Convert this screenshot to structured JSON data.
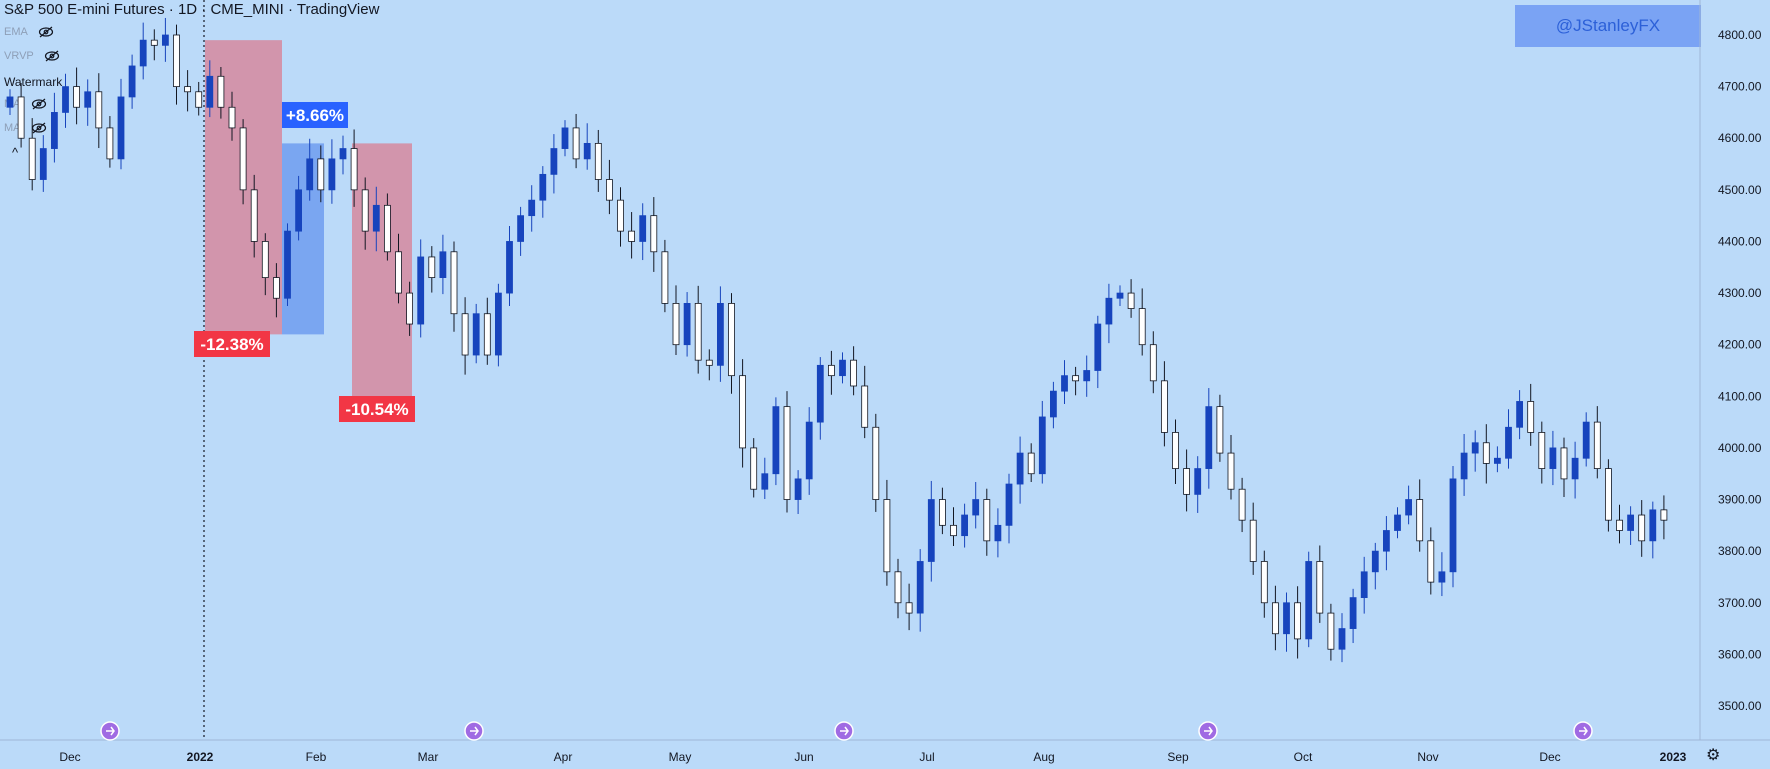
{
  "header": {
    "title": "S&P 500 E-mini Futures · 1D · CME_MINI · TradingView"
  },
  "indicators": [
    {
      "label": "EMA",
      "icon": "eye-hidden-icon"
    },
    {
      "label": "VRVP",
      "icon": "eye-hidden-icon"
    },
    {
      "label": "MA",
      "icon": "eye-hidden-icon"
    },
    {
      "label": "MA",
      "icon": "eye-hidden-icon"
    }
  ],
  "watermark_label": "Watermark",
  "collapse_icon": "^",
  "handle": "@JStanleyFX",
  "colors": {
    "background": "#bbdaf9",
    "up": "#1744bd",
    "down": "#ffffff",
    "range_down": "#d6889f",
    "range_up": "#6f9cf0"
  },
  "chart_data": {
    "type": "candlestick",
    "title": "S&P 500 E-mini Futures · 1D · CME_MINI · TradingView",
    "ylim": [
      3450,
      4850
    ],
    "y_ticks": [
      "4800.00",
      "4700.00",
      "4600.00",
      "4500.00",
      "4400.00",
      "4300.00",
      "4200.00",
      "4100.00",
      "4000.00",
      "3900.00",
      "3800.00",
      "3700.00",
      "3600.00",
      "3500.00"
    ],
    "x_ticks": [
      "Dec",
      "2022",
      "Feb",
      "Mar",
      "Apr",
      "May",
      "Jun",
      "Jul",
      "Aug",
      "Sep",
      "Oct",
      "Nov",
      "Dec",
      "2023"
    ],
    "year_marker": "2022",
    "series": [
      {
        "t": 0,
        "c": 4680
      },
      {
        "t": 3,
        "c": 4600
      },
      {
        "t": 6,
        "c": 4520
      },
      {
        "t": 9,
        "c": 4580
      },
      {
        "t": 12,
        "c": 4650
      },
      {
        "t": 15,
        "c": 4700
      },
      {
        "t": 18,
        "c": 4660
      },
      {
        "t": 21,
        "c": 4690
      },
      {
        "t": 24,
        "c": 4620
      },
      {
        "t": 27,
        "c": 4560
      },
      {
        "t": 30,
        "c": 4680
      },
      {
        "t": 33,
        "c": 4740
      },
      {
        "t": 36,
        "c": 4790
      },
      {
        "t": 39,
        "c": 4780
      },
      {
        "t": 42,
        "c": 4800
      },
      {
        "t": 45,
        "c": 4700
      },
      {
        "t": 48,
        "c": 4690
      },
      {
        "t": 51,
        "c": 4660
      },
      {
        "t": 54,
        "c": 4720
      },
      {
        "t": 57,
        "c": 4660
      },
      {
        "t": 60,
        "c": 4620
      },
      {
        "t": 63,
        "c": 4500
      },
      {
        "t": 66,
        "c": 4400
      },
      {
        "t": 69,
        "c": 4330
      },
      {
        "t": 72,
        "c": 4290
      },
      {
        "t": 75,
        "c": 4420
      },
      {
        "t": 78,
        "c": 4500
      },
      {
        "t": 81,
        "c": 4560
      },
      {
        "t": 84,
        "c": 4500
      },
      {
        "t": 87,
        "c": 4560
      },
      {
        "t": 90,
        "c": 4580
      },
      {
        "t": 93,
        "c": 4500
      },
      {
        "t": 96,
        "c": 4420
      },
      {
        "t": 99,
        "c": 4470
      },
      {
        "t": 102,
        "c": 4380
      },
      {
        "t": 105,
        "c": 4300
      },
      {
        "t": 108,
        "c": 4240
      },
      {
        "t": 111,
        "c": 4370
      },
      {
        "t": 114,
        "c": 4330
      },
      {
        "t": 117,
        "c": 4380
      },
      {
        "t": 120,
        "c": 4260
      },
      {
        "t": 123,
        "c": 4180
      },
      {
        "t": 126,
        "c": 4260
      },
      {
        "t": 129,
        "c": 4180
      },
      {
        "t": 132,
        "c": 4300
      },
      {
        "t": 135,
        "c": 4400
      },
      {
        "t": 138,
        "c": 4450
      },
      {
        "t": 141,
        "c": 4480
      },
      {
        "t": 144,
        "c": 4530
      },
      {
        "t": 147,
        "c": 4580
      },
      {
        "t": 150,
        "c": 4620
      },
      {
        "t": 153,
        "c": 4560
      },
      {
        "t": 156,
        "c": 4590
      },
      {
        "t": 159,
        "c": 4520
      },
      {
        "t": 162,
        "c": 4480
      },
      {
        "t": 165,
        "c": 4420
      },
      {
        "t": 168,
        "c": 4400
      },
      {
        "t": 171,
        "c": 4450
      },
      {
        "t": 174,
        "c": 4380
      },
      {
        "t": 177,
        "c": 4280
      },
      {
        "t": 180,
        "c": 4200
      },
      {
        "t": 183,
        "c": 4280
      },
      {
        "t": 186,
        "c": 4170
      },
      {
        "t": 189,
        "c": 4160
      },
      {
        "t": 192,
        "c": 4280
      },
      {
        "t": 195,
        "c": 4140
      },
      {
        "t": 198,
        "c": 4000
      },
      {
        "t": 201,
        "c": 3920
      },
      {
        "t": 204,
        "c": 3950
      },
      {
        "t": 207,
        "c": 4080
      },
      {
        "t": 210,
        "c": 3900
      },
      {
        "t": 213,
        "c": 3940
      },
      {
        "t": 216,
        "c": 4050
      },
      {
        "t": 219,
        "c": 4160
      },
      {
        "t": 222,
        "c": 4140
      },
      {
        "t": 225,
        "c": 4170
      },
      {
        "t": 228,
        "c": 4120
      },
      {
        "t": 231,
        "c": 4040
      },
      {
        "t": 234,
        "c": 3900
      },
      {
        "t": 237,
        "c": 3760
      },
      {
        "t": 240,
        "c": 3700
      },
      {
        "t": 243,
        "c": 3680
      },
      {
        "t": 246,
        "c": 3780
      },
      {
        "t": 249,
        "c": 3900
      },
      {
        "t": 252,
        "c": 3850
      },
      {
        "t": 255,
        "c": 3830
      },
      {
        "t": 258,
        "c": 3870
      },
      {
        "t": 261,
        "c": 3900
      },
      {
        "t": 264,
        "c": 3820
      },
      {
        "t": 267,
        "c": 3850
      },
      {
        "t": 270,
        "c": 3930
      },
      {
        "t": 273,
        "c": 3990
      },
      {
        "t": 276,
        "c": 3950
      },
      {
        "t": 279,
        "c": 4060
      },
      {
        "t": 282,
        "c": 4110
      },
      {
        "t": 285,
        "c": 4140
      },
      {
        "t": 288,
        "c": 4130
      },
      {
        "t": 291,
        "c": 4150
      },
      {
        "t": 294,
        "c": 4240
      },
      {
        "t": 297,
        "c": 4290
      },
      {
        "t": 300,
        "c": 4300
      },
      {
        "t": 303,
        "c": 4270
      },
      {
        "t": 306,
        "c": 4200
      },
      {
        "t": 309,
        "c": 4130
      },
      {
        "t": 312,
        "c": 4030
      },
      {
        "t": 315,
        "c": 3960
      },
      {
        "t": 318,
        "c": 3910
      },
      {
        "t": 321,
        "c": 3960
      },
      {
        "t": 324,
        "c": 4080
      },
      {
        "t": 327,
        "c": 3990
      },
      {
        "t": 330,
        "c": 3920
      },
      {
        "t": 333,
        "c": 3860
      },
      {
        "t": 336,
        "c": 3780
      },
      {
        "t": 339,
        "c": 3700
      },
      {
        "t": 342,
        "c": 3640
      },
      {
        "t": 345,
        "c": 3700
      },
      {
        "t": 348,
        "c": 3630
      },
      {
        "t": 351,
        "c": 3780
      },
      {
        "t": 354,
        "c": 3680
      },
      {
        "t": 357,
        "c": 3610
      },
      {
        "t": 360,
        "c": 3650
      },
      {
        "t": 363,
        "c": 3710
      },
      {
        "t": 366,
        "c": 3760
      },
      {
        "t": 369,
        "c": 3800
      },
      {
        "t": 372,
        "c": 3840
      },
      {
        "t": 375,
        "c": 3870
      },
      {
        "t": 378,
        "c": 3900
      },
      {
        "t": 381,
        "c": 3820
      },
      {
        "t": 384,
        "c": 3740
      },
      {
        "t": 387,
        "c": 3760
      },
      {
        "t": 390,
        "c": 3940
      },
      {
        "t": 393,
        "c": 3990
      },
      {
        "t": 396,
        "c": 4010
      },
      {
        "t": 399,
        "c": 3970
      },
      {
        "t": 402,
        "c": 3980
      },
      {
        "t": 405,
        "c": 4040
      },
      {
        "t": 408,
        "c": 4090
      },
      {
        "t": 411,
        "c": 4030
      },
      {
        "t": 414,
        "c": 3960
      },
      {
        "t": 417,
        "c": 4000
      },
      {
        "t": 420,
        "c": 3940
      },
      {
        "t": 423,
        "c": 3980
      },
      {
        "t": 426,
        "c": 4050
      },
      {
        "t": 429,
        "c": 3960
      },
      {
        "t": 432,
        "c": 3860
      },
      {
        "t": 435,
        "c": 3840
      },
      {
        "t": 438,
        "c": 3870
      },
      {
        "t": 441,
        "c": 3820
      },
      {
        "t": 444,
        "c": 3880
      },
      {
        "t": 447,
        "c": 3860
      }
    ],
    "annotations": [
      {
        "label": "-12.38%",
        "kind": "down",
        "from": 4790,
        "to": 4220
      },
      {
        "label": "+8.66%",
        "kind": "up",
        "from": 4220,
        "to": 4590
      },
      {
        "label": "-10.54%",
        "kind": "down",
        "from": 4590,
        "to": 4100
      }
    ],
    "event_markers": 5
  },
  "axis_settings_icon": "gear-icon"
}
